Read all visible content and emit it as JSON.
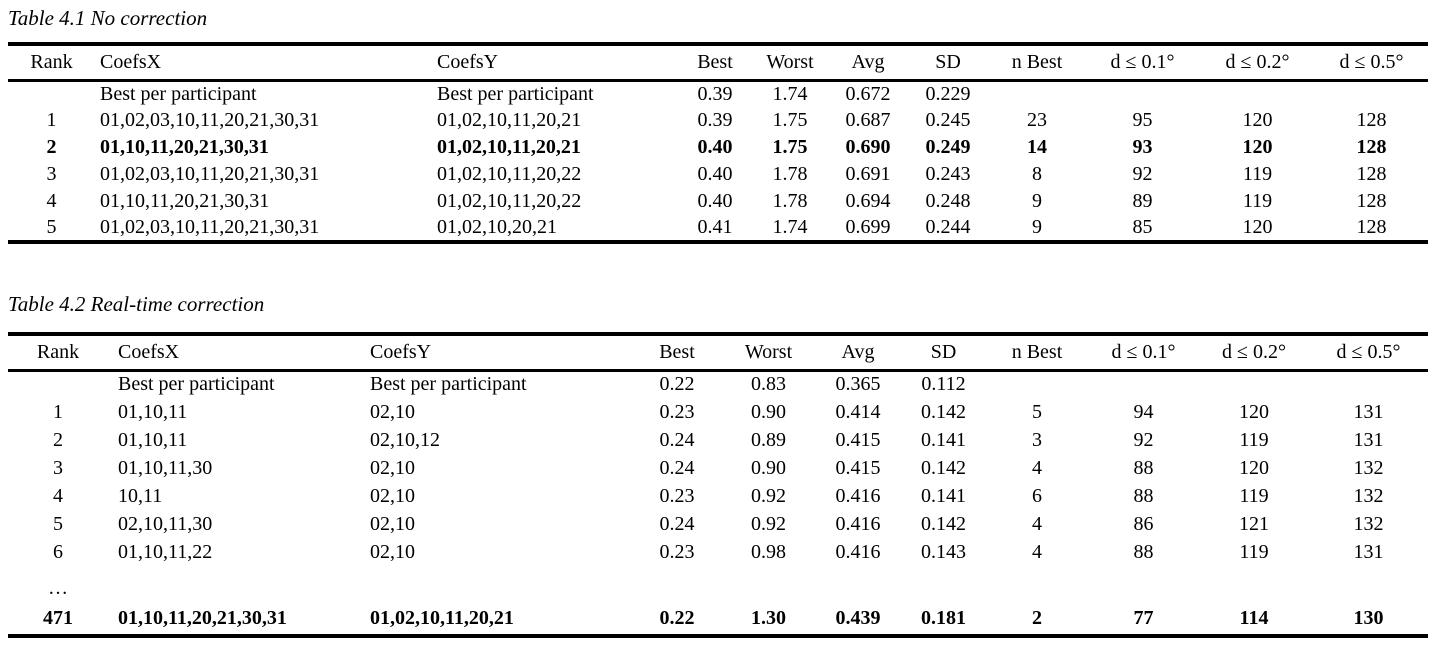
{
  "page": {
    "background": "#ffffff",
    "text_color": "#000000"
  },
  "tables": [
    {
      "title": "Table 4.1 No correction",
      "headers": [
        "Rank",
        "CoefsX",
        "CoefsY",
        "Best",
        "Worst",
        "Avg",
        "SD",
        "n Best",
        "d ≤ 0.1°",
        "d ≤ 0.2°",
        "d ≤ 0.5°"
      ],
      "rows": [
        {
          "cells": [
            "",
            "Best per participant",
            "Best per participant",
            "0.39",
            "1.74",
            "0.672",
            "0.229",
            "",
            "",
            "",
            ""
          ],
          "bold": false,
          "ellipsis": false
        },
        {
          "cells": [
            "1",
            "01,02,03,10,11,20,21,30,31",
            "01,02,10,11,20,21",
            "0.39",
            "1.75",
            "0.687",
            "0.245",
            "23",
            "95",
            "120",
            "128"
          ],
          "bold": false,
          "ellipsis": false
        },
        {
          "cells": [
            "2",
            "01,10,11,20,21,30,31",
            "01,02,10,11,20,21",
            "0.40",
            "1.75",
            "0.690",
            "0.249",
            "14",
            "93",
            "120",
            "128"
          ],
          "bold": true,
          "ellipsis": false
        },
        {
          "cells": [
            "3",
            "01,02,03,10,11,20,21,30,31",
            "01,02,10,11,20,22",
            "0.40",
            "1.78",
            "0.691",
            "0.243",
            "8",
            "92",
            "119",
            "128"
          ],
          "bold": false,
          "ellipsis": false
        },
        {
          "cells": [
            "4",
            "01,10,11,20,21,30,31",
            "01,02,10,11,20,22",
            "0.40",
            "1.78",
            "0.694",
            "0.248",
            "9",
            "89",
            "119",
            "128"
          ],
          "bold": false,
          "ellipsis": false
        },
        {
          "cells": [
            "5",
            "01,02,03,10,11,20,21,30,31",
            "01,02,10,20,21",
            "0.41",
            "1.74",
            "0.699",
            "0.244",
            "9",
            "85",
            "120",
            "128"
          ],
          "bold": false,
          "ellipsis": false
        }
      ]
    },
    {
      "title": "Table 4.2 Real-time correction",
      "headers": [
        "Rank",
        "CoefsX",
        "CoefsY",
        "Best",
        "Worst",
        "Avg",
        "SD",
        "n Best",
        "d ≤ 0.1°",
        "d ≤ 0.2°",
        "d ≤ 0.5°"
      ],
      "rows": [
        {
          "cells": [
            "",
            "Best per participant",
            "Best per participant",
            "0.22",
            "0.83",
            "0.365",
            "0.112",
            "",
            "",
            "",
            ""
          ],
          "bold": false,
          "ellipsis": false
        },
        {
          "cells": [
            "1",
            "01,10,11",
            "02,10",
            "0.23",
            "0.90",
            "0.414",
            "0.142",
            "5",
            "94",
            "120",
            "131"
          ],
          "bold": false,
          "ellipsis": false
        },
        {
          "cells": [
            "2",
            "01,10,11",
            "02,10,12",
            "0.24",
            "0.89",
            "0.415",
            "0.141",
            "3",
            "92",
            "119",
            "131"
          ],
          "bold": false,
          "ellipsis": false
        },
        {
          "cells": [
            "3",
            "01,10,11,30",
            "02,10",
            "0.24",
            "0.90",
            "0.415",
            "0.142",
            "4",
            "88",
            "120",
            "132"
          ],
          "bold": false,
          "ellipsis": false
        },
        {
          "cells": [
            "4",
            "10,11",
            "02,10",
            "0.23",
            "0.92",
            "0.416",
            "0.141",
            "6",
            "88",
            "119",
            "132"
          ],
          "bold": false,
          "ellipsis": false
        },
        {
          "cells": [
            "5",
            "02,10,11,30",
            "02,10",
            "0.24",
            "0.92",
            "0.416",
            "0.142",
            "4",
            "86",
            "121",
            "132"
          ],
          "bold": false,
          "ellipsis": false
        },
        {
          "cells": [
            "6",
            "01,10,11,22",
            "02,10",
            "0.23",
            "0.98",
            "0.416",
            "0.143",
            "4",
            "88",
            "119",
            "131"
          ],
          "bold": false,
          "ellipsis": false
        },
        {
          "cells": [
            "…",
            "",
            "",
            "",
            "",
            "",
            "",
            "",
            "",
            "",
            ""
          ],
          "bold": false,
          "ellipsis": true
        },
        {
          "cells": [
            "471",
            "01,10,11,20,21,30,31",
            "01,02,10,11,20,21",
            "0.22",
            "1.30",
            "0.439",
            "0.181",
            "2",
            "77",
            "114",
            "130"
          ],
          "bold": true,
          "ellipsis": false
        }
      ]
    }
  ]
}
